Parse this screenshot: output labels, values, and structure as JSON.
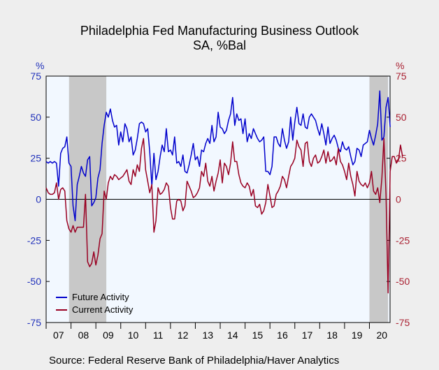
{
  "chart_data": {
    "type": "line",
    "title": "Philadelphia Fed Manufacturing Business Outlook",
    "subtitle": "SA, %Bal",
    "yunit_left": "%",
    "yunit_right": "%",
    "ylim": [
      -75,
      75
    ],
    "yticks": [
      "75",
      "50",
      "25",
      "0",
      "-25",
      "-50",
      "-75"
    ],
    "yticks_right": [
      "75",
      "50",
      "25",
      "0",
      "-25",
      "-50",
      "-75"
    ],
    "x_start_year": 2007,
    "x_end_year": 2020,
    "xticks": [
      "07",
      "08",
      "09",
      "10",
      "11",
      "12",
      "13",
      "14",
      "15",
      "16",
      "17",
      "18",
      "19",
      "20"
    ],
    "recession_shading": [
      {
        "start": 2007.92,
        "end": 2009.42
      },
      {
        "start": 2020.0,
        "end": 2020.75
      }
    ],
    "legend_position": "bottom-left",
    "colors": {
      "future": "#0000cc",
      "current": "#990022",
      "recession": "#c8c8c8",
      "plot_bg": "#f2f8ff",
      "background": "#eeeeee"
    },
    "series": [
      {
        "name": "Future Activity",
        "start": 2007.0,
        "values": [
          23,
          22,
          23,
          22,
          23,
          22,
          8,
          28,
          31,
          32,
          38,
          22,
          20,
          -4,
          -13,
          9,
          14,
          20,
          16,
          14,
          24,
          26,
          -4,
          -2,
          1,
          13,
          18,
          34,
          45,
          53,
          50,
          55,
          48,
          44,
          45,
          33,
          41,
          35,
          46,
          43,
          35,
          38,
          27,
          30,
          37,
          46,
          47,
          46,
          41,
          43,
          29,
          8,
          28,
          12,
          17,
          26,
          33,
          29,
          43,
          29,
          30,
          27,
          38,
          22,
          23,
          20,
          27,
          17,
          16,
          21,
          27,
          34,
          24,
          26,
          20,
          30,
          29,
          34,
          37,
          34,
          45,
          35,
          38,
          53,
          44,
          43,
          40,
          42,
          48,
          52,
          62,
          45,
          52,
          48,
          49,
          40,
          49,
          35,
          40,
          37,
          43,
          40,
          37,
          35,
          36,
          38,
          17,
          17,
          15,
          20,
          38,
          38,
          34,
          32,
          43,
          36,
          31,
          35,
          50,
          36,
          47,
          56,
          46,
          45,
          52,
          44,
          43,
          50,
          52,
          50,
          48,
          43,
          39,
          46,
          40,
          33,
          44,
          34,
          37,
          39,
          36,
          31,
          29,
          35,
          31,
          30,
          32,
          26,
          21,
          23,
          31,
          30,
          26,
          33,
          34,
          35,
          42,
          37,
          33,
          39,
          46,
          66,
          36,
          38,
          56,
          62,
          44
        ]
      },
      {
        "name": "Current Activity",
        "start": 2007.0,
        "values": [
          7,
          4,
          3,
          3,
          4,
          10,
          0,
          6,
          7,
          5,
          -13,
          -18,
          -20,
          -16,
          -20,
          -17,
          -17,
          -17,
          -17,
          3,
          -38,
          -41,
          -39,
          -32,
          -40,
          -34,
          -24,
          -21,
          5,
          0,
          10,
          14,
          12,
          15,
          14,
          12,
          13,
          14,
          16,
          18,
          11,
          9,
          18,
          14,
          21,
          17,
          31,
          37,
          18,
          11,
          4,
          9,
          -20,
          -13,
          7,
          3,
          4,
          6,
          10,
          8,
          -5,
          -12,
          -12,
          -1,
          0,
          -1,
          -7,
          -4,
          11,
          8,
          5,
          1,
          2,
          4,
          7,
          17,
          14,
          22,
          11,
          8,
          14,
          5,
          11,
          16,
          24,
          10,
          22,
          20,
          15,
          22,
          35,
          23,
          23,
          15,
          10,
          8,
          7,
          10,
          8,
          2,
          6,
          -4,
          -5,
          -3,
          -9,
          -7,
          -2,
          9,
          2,
          -5,
          -4,
          3,
          5,
          8,
          14,
          12,
          7,
          14,
          20,
          22,
          25,
          36,
          32,
          30,
          20,
          34,
          35,
          23,
          20,
          25,
          27,
          22,
          23,
          26,
          30,
          22,
          29,
          23,
          24,
          26,
          21,
          31,
          23,
          21,
          17,
          12,
          22,
          14,
          9,
          2,
          17,
          11,
          9,
          8,
          10,
          7,
          10,
          17,
          5,
          3,
          7,
          -2,
          13,
          37,
          3,
          -57,
          17,
          26,
          26,
          22,
          24,
          33,
          26
        ]
      }
    ]
  },
  "source": "Source:  Federal Reserve Bank of Philadelphia/Haver Analytics"
}
